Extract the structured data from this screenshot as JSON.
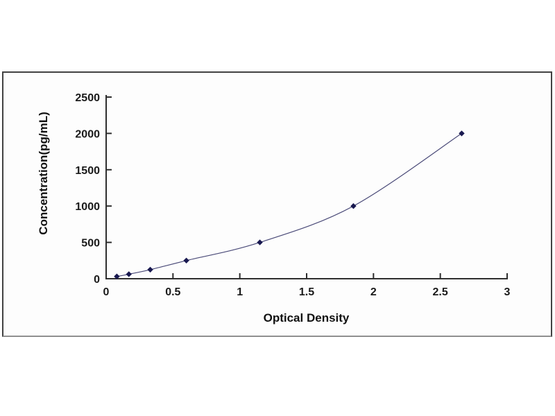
{
  "page": {
    "background": "#ffffff"
  },
  "chart_frame": {
    "border_color": "#424242",
    "background": "#fdfdfd"
  },
  "chart_data": {
    "type": "line",
    "title": "",
    "xlabel": "Optical Density",
    "ylabel": "Concentration(pg/mL)",
    "x": [
      0.08,
      0.17,
      0.33,
      0.6,
      1.15,
      1.85,
      2.66
    ],
    "y": [
      31.25,
      62.5,
      125,
      250,
      500,
      1000,
      2000
    ],
    "xlim": [
      0,
      3
    ],
    "ylim": [
      0,
      2500
    ],
    "x_tick_labels": [
      "0",
      "0.5",
      "1",
      "1.5",
      "2",
      "2.5",
      "3"
    ],
    "x_tick_values": [
      0,
      0.5,
      1,
      1.5,
      2,
      2.5,
      3
    ],
    "y_tick_labels": [
      "0",
      "500",
      "1000",
      "1500",
      "2000",
      "2500"
    ],
    "y_tick_values": [
      0,
      500,
      1000,
      1500,
      2000,
      2500
    ],
    "grid": false,
    "legend": "none",
    "marker": "diamond",
    "line_color": "#4a4a78",
    "marker_color": "#191950",
    "axis_color": "#2e2e2e",
    "tick_label_color": "#1a1a1a"
  }
}
